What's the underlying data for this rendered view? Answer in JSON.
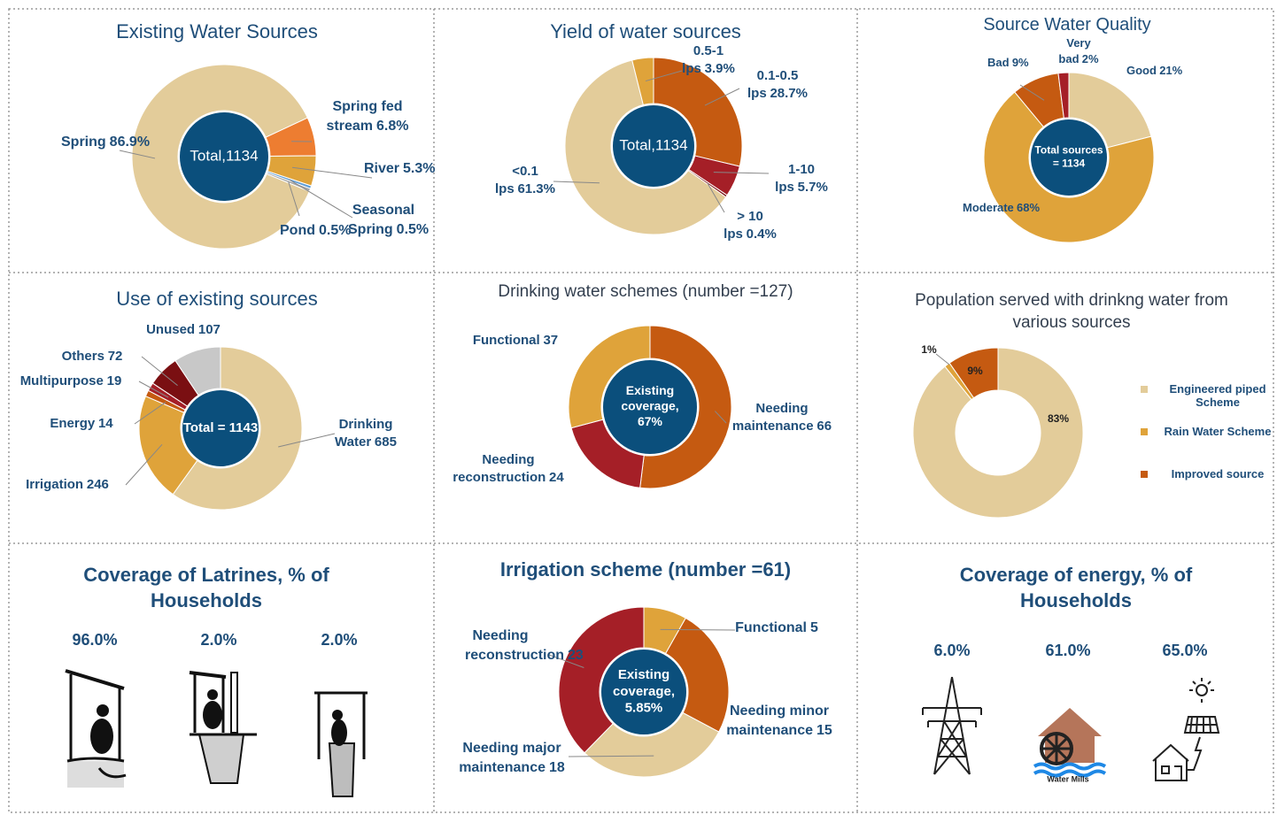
{
  "chart_data": [
    {
      "type": "donut",
      "title": "Existing Water Sources",
      "center_label": [
        "Total,1134"
      ],
      "categories": [
        "Spring fed stream",
        "River",
        "Seasonal Spring",
        "Pond",
        "Spring"
      ],
      "values": [
        6.8,
        5.3,
        0.5,
        0.5,
        86.9
      ],
      "value_labels": [
        "6.8%",
        "5.3%",
        "0.5%",
        "0.5%",
        "86.9%"
      ],
      "colors": [
        "#ed7d31",
        "#dfa33a",
        "#5b9bd5",
        "#a5a5a5",
        "#e3cc9a"
      ]
    },
    {
      "type": "donut",
      "title": "Yield of water sources",
      "center_label": [
        "Total,1134"
      ],
      "categories": [
        "0.1-0.5 lps",
        "1-10 lps",
        "> 10 lps",
        "<0.1 lps",
        "0.5-1 lps"
      ],
      "values": [
        28.7,
        5.7,
        0.4,
        61.3,
        3.9
      ],
      "value_labels": [
        "28.7%",
        "5.7%",
        "0.4%",
        "61.3%",
        "3.9%"
      ],
      "colors": [
        "#c55a11",
        "#a51f27",
        "#7a0f12",
        "#e3cc9a",
        "#dfa33a"
      ]
    },
    {
      "type": "donut",
      "title": "Source Water Quality",
      "center_label": [
        "Total sources",
        "= 1134"
      ],
      "categories": [
        "Good",
        "Moderate",
        "Bad",
        "Very bad"
      ],
      "values": [
        21,
        68,
        9,
        2
      ],
      "value_labels": [
        "21%",
        "68%",
        "9%",
        "2%"
      ],
      "colors": [
        "#e3cc9a",
        "#dfa33a",
        "#c55a11",
        "#a51f27"
      ]
    },
    {
      "type": "donut",
      "title": "Use of existing sources",
      "center_label": [
        "Total = 1143"
      ],
      "categories": [
        "Drinking Water",
        "Irrigation",
        "Energy",
        "Multipurpose",
        "Others",
        "Unused"
      ],
      "values": [
        685,
        246,
        14,
        19,
        72,
        107
      ],
      "colors": [
        "#e3cc9a",
        "#dfa33a",
        "#c55a11",
        "#a51f27",
        "#7a0f12",
        "#c8c8c8"
      ]
    },
    {
      "type": "donut",
      "title": "Drinking water schemes (number =127)",
      "center_label": [
        "Existing",
        "coverage,",
        "67%"
      ],
      "categories": [
        "Needing maintenance",
        "Needing reconstruction",
        "Functional"
      ],
      "values": [
        66,
        24,
        37
      ],
      "colors": [
        "#c55a11",
        "#a51f27",
        "#dfa33a"
      ]
    },
    {
      "type": "donut",
      "title": "Population served with drinkng water from various sources",
      "categories": [
        "Engineered piped Scheme",
        "Rain Water Scheme",
        "Improved source"
      ],
      "values": [
        83,
        1,
        9
      ],
      "value_labels": [
        "83%",
        "1%",
        "9%"
      ],
      "colors": [
        "#e3cc9a",
        "#dfa33a",
        "#c55a11"
      ],
      "legend": "right"
    },
    {
      "type": "icons",
      "title": "Coverage of Latrines, % of Households",
      "values": [
        96.0,
        2.0,
        2.0
      ],
      "value_labels": [
        "96.0%",
        "2.0%",
        "2.0%"
      ]
    },
    {
      "type": "donut",
      "title": "Irrigation scheme (number =61)",
      "center_label": [
        "Existing",
        "coverage,",
        "5.85%"
      ],
      "categories": [
        "Functional",
        "Needing minor maintenance",
        "Needing major maintenance",
        "Needing reconstruction"
      ],
      "values": [
        5,
        15,
        18,
        23
      ],
      "colors": [
        "#dfa33a",
        "#c55a11",
        "#e3cc9a",
        "#a51f27"
      ]
    },
    {
      "type": "icons",
      "title": "Coverage of energy, % of Households",
      "values": [
        6.0,
        61.0,
        65.0
      ],
      "value_labels": [
        "6.0%",
        "61.0%",
        "65.0%"
      ],
      "annotation": "Water Mills"
    }
  ]
}
